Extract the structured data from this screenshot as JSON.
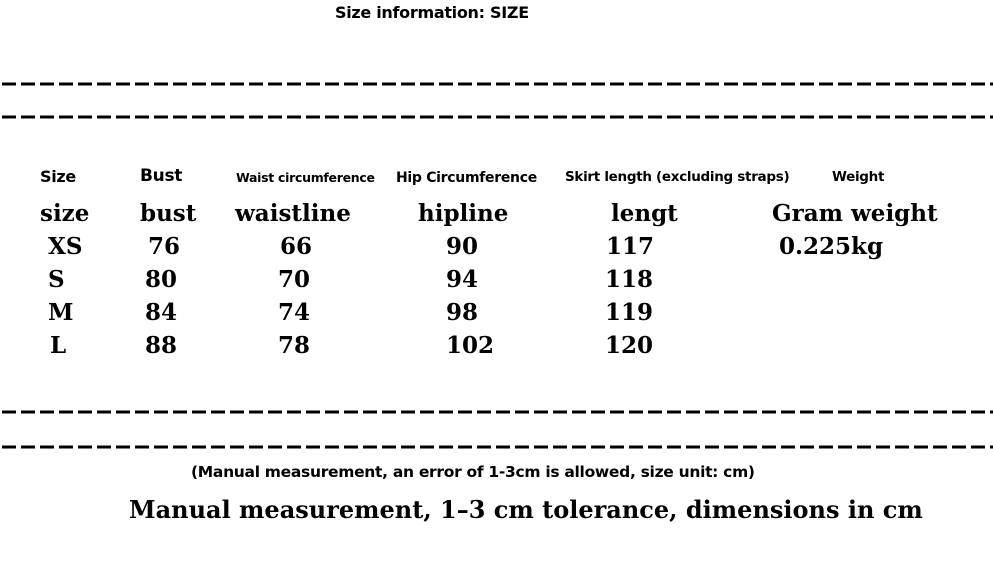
{
  "header": {
    "title": "Size information: SIZE"
  },
  "table": {
    "headers": [
      "Size",
      "Bust",
      "Waist circumference",
      "Hip Circumference",
      "Skirt length (excluding straps)",
      "Weight"
    ],
    "subheaders": [
      "size",
      "bust",
      "waistline",
      "hipline",
      "lengt",
      "Gram weight"
    ],
    "rows": [
      [
        "XS",
        "76",
        "66",
        "90",
        "117",
        "0.225kg"
      ],
      [
        "S",
        "80",
        "70",
        "94",
        "118"
      ],
      [
        "M",
        "84",
        "74",
        "98",
        "119"
      ],
      [
        "L",
        "88",
        "78",
        "102",
        "120"
      ]
    ]
  },
  "footer": {
    "note": "(Manual measurement, an error of 1-3cm is allowed, size unit: cm)",
    "caption": "Manual measurement, 1–3 cm tolerance, dimensions in cm"
  }
}
